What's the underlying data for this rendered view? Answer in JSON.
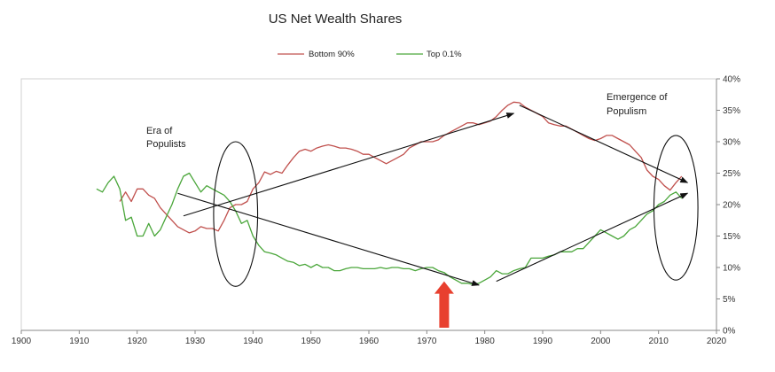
{
  "chart_data": {
    "type": "line",
    "title": "US Net Wealth Shares",
    "xlabel": "",
    "ylabel": "",
    "xlim": [
      1900,
      2020
    ],
    "ylim": [
      0,
      40
    ],
    "xticks": [
      "1900",
      "1910",
      "1920",
      "1930",
      "1940",
      "1950",
      "1960",
      "1970",
      "1980",
      "1990",
      "2000",
      "2010",
      "2020"
    ],
    "yticks": [
      "0%",
      "5%",
      "10%",
      "15%",
      "20%",
      "25%",
      "30%",
      "35%",
      "40%"
    ],
    "legend_position": "top-center",
    "grid": false,
    "series": [
      {
        "name": "Bottom 90%",
        "color": "#c0504d",
        "x": [
          1917,
          1918,
          1919,
          1920,
          1921,
          1922,
          1923,
          1924,
          1925,
          1926,
          1927,
          1928,
          1929,
          1930,
          1931,
          1932,
          1933,
          1934,
          1935,
          1936,
          1937,
          1938,
          1939,
          1940,
          1941,
          1942,
          1943,
          1944,
          1945,
          1946,
          1947,
          1948,
          1949,
          1950,
          1951,
          1952,
          1953,
          1954,
          1955,
          1956,
          1957,
          1958,
          1959,
          1960,
          1961,
          1962,
          1963,
          1964,
          1965,
          1966,
          1967,
          1968,
          1969,
          1970,
          1971,
          1972,
          1973,
          1974,
          1975,
          1976,
          1977,
          1978,
          1979,
          1980,
          1981,
          1982,
          1983,
          1984,
          1985,
          1986,
          1987,
          1988,
          1989,
          1990,
          1991,
          1992,
          1993,
          1994,
          1995,
          1996,
          1997,
          1998,
          1999,
          2000,
          2001,
          2002,
          2003,
          2004,
          2005,
          2006,
          2007,
          2008,
          2009,
          2010,
          2011,
          2012,
          2013,
          2014
        ],
        "values": [
          20.5,
          22,
          20.5,
          22.5,
          22.5,
          21.5,
          21,
          19.5,
          18.5,
          17.5,
          16.5,
          16,
          15.5,
          15.8,
          16.5,
          16.2,
          16.2,
          15.8,
          17.5,
          19.5,
          20,
          20,
          20.5,
          22.5,
          23.5,
          25.2,
          24.8,
          25.3,
          25,
          26.3,
          27.5,
          28.5,
          28.8,
          28.5,
          29,
          29.3,
          29.5,
          29.3,
          29,
          29,
          28.8,
          28.5,
          28,
          28,
          27.5,
          27,
          26.5,
          27,
          27.5,
          28,
          29,
          29.5,
          30,
          30,
          30,
          30.3,
          31,
          31.5,
          32,
          32.5,
          33,
          33,
          32.7,
          33,
          33.3,
          34,
          35,
          35.8,
          36.3,
          36.2,
          35.5,
          35,
          34.5,
          34,
          33,
          32.7,
          32.5,
          32.5,
          32,
          31.5,
          31,
          30.5,
          30.2,
          30.5,
          31,
          31,
          30.5,
          30,
          29.5,
          28.5,
          27.5,
          25.5,
          24.5,
          24,
          23,
          22.3,
          23.5,
          24.5
        ]
      },
      {
        "name": "Top 0.1%",
        "color": "#4aa63a",
        "x": [
          1913,
          1914,
          1915,
          1916,
          1917,
          1918,
          1919,
          1920,
          1921,
          1922,
          1923,
          1924,
          1925,
          1926,
          1927,
          1928,
          1929,
          1930,
          1931,
          1932,
          1933,
          1934,
          1935,
          1936,
          1937,
          1938,
          1939,
          1940,
          1941,
          1942,
          1943,
          1944,
          1945,
          1946,
          1947,
          1948,
          1949,
          1950,
          1951,
          1952,
          1953,
          1954,
          1955,
          1956,
          1957,
          1958,
          1959,
          1960,
          1961,
          1962,
          1963,
          1964,
          1965,
          1966,
          1967,
          1968,
          1969,
          1970,
          1971,
          1972,
          1973,
          1974,
          1975,
          1976,
          1977,
          1978,
          1979,
          1980,
          1981,
          1982,
          1983,
          1984,
          1985,
          1986,
          1987,
          1988,
          1989,
          1990,
          1991,
          1992,
          1993,
          1994,
          1995,
          1996,
          1997,
          1998,
          1999,
          2000,
          2001,
          2002,
          2003,
          2004,
          2005,
          2006,
          2007,
          2008,
          2009,
          2010,
          2011,
          2012,
          2013,
          2014
        ],
        "values": [
          22.5,
          22,
          23.5,
          24.5,
          22.5,
          17.5,
          18,
          15,
          15,
          17,
          15,
          16,
          18,
          20,
          22.5,
          24.5,
          25,
          23.5,
          22,
          23,
          22.5,
          22,
          21.5,
          20.5,
          19,
          17,
          17.5,
          15,
          13.5,
          12.5,
          12.3,
          12,
          11.5,
          11,
          10.8,
          10.3,
          10.5,
          10,
          10.5,
          10,
          10,
          9.5,
          9.5,
          9.8,
          10,
          10,
          9.8,
          9.8,
          9.8,
          10,
          9.8,
          10,
          10,
          9.8,
          9.8,
          9.5,
          9.8,
          10,
          10,
          9.5,
          9.2,
          8.5,
          8,
          7.5,
          7.5,
          7.3,
          7.5,
          8,
          8.5,
          9.5,
          9,
          9,
          9.5,
          9.8,
          10,
          11.5,
          11.5,
          11.5,
          11.8,
          12,
          12.5,
          12.5,
          12.5,
          13,
          13,
          14,
          15,
          16,
          15.5,
          15,
          14.5,
          15,
          16,
          16.5,
          17.5,
          18.5,
          19,
          20,
          20.5,
          21.5,
          22,
          21
        ]
      }
    ],
    "annotations": [
      {
        "text_lines": [
          "Era of",
          "Populists"
        ]
      },
      {
        "text_lines": [
          "Emergence of",
          "Populism"
        ]
      }
    ],
    "trend_arrows": [
      {
        "from": [
          1928,
          18.2
        ],
        "to": [
          1985,
          34.5
        ]
      },
      {
        "from": [
          1927,
          21.8
        ],
        "to": [
          1979,
          7.2
        ]
      },
      {
        "from": [
          1986,
          35.8
        ],
        "to": [
          2015,
          23.5
        ]
      },
      {
        "from": [
          1982,
          7.8
        ],
        "to": [
          2015,
          21.8
        ]
      }
    ],
    "ellipses": [
      {
        "cx": 1937,
        "cy": 18.5,
        "rx_years": 3.8,
        "ry_pct": 11.5
      },
      {
        "cx": 2013,
        "cy": 19.5,
        "rx_years": 3.8,
        "ry_pct": 11.5
      }
    ],
    "highlight_arrow": {
      "x": 1973,
      "color": "#e8402f"
    }
  }
}
